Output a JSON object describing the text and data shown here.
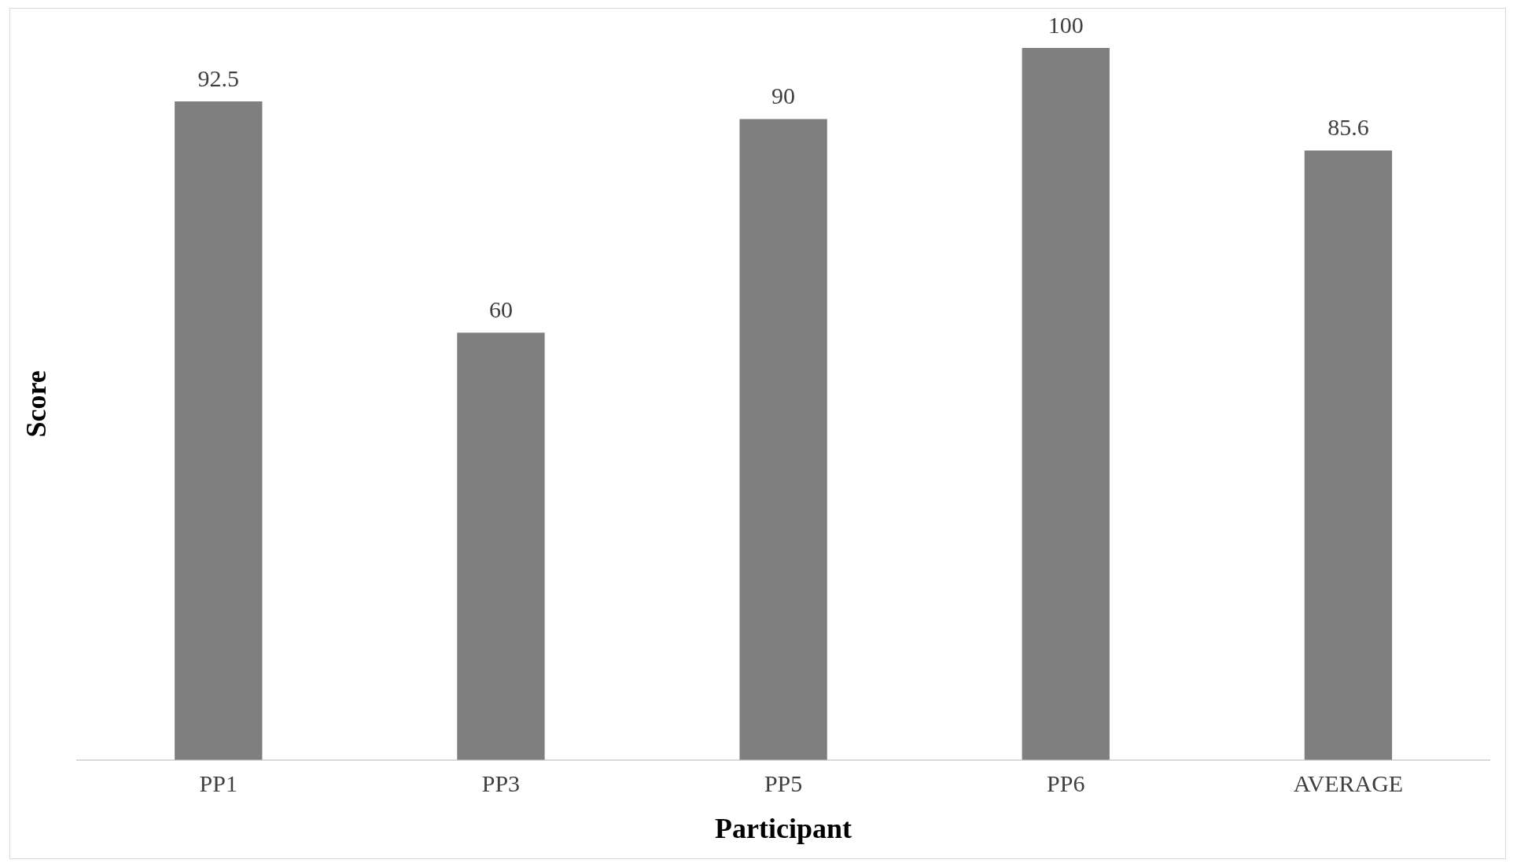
{
  "chart_data": {
    "type": "bar",
    "xlabel": "Participant",
    "ylabel": "Score",
    "categories": [
      "PP1",
      "PP3",
      "PP5",
      "PP6",
      "AVERAGE"
    ],
    "values": [
      92.5,
      60,
      90,
      100,
      85.6
    ],
    "color": "#7f7f7f",
    "data_labels": true,
    "grid": false,
    "legend": false
  }
}
